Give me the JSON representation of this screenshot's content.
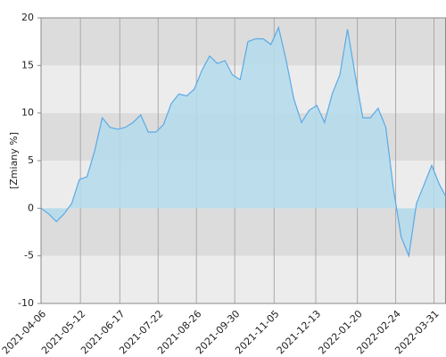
{
  "chart_data": {
    "type": "area",
    "y_label": "[Zmiany %]",
    "x": [
      "2021-04-06",
      "2021-04-13",
      "2021-04-20",
      "2021-04-27",
      "2021-05-04",
      "2021-05-11",
      "2021-05-18",
      "2021-05-25",
      "2021-06-01",
      "2021-06-08",
      "2021-06-15",
      "2021-06-22",
      "2021-06-29",
      "2021-07-06",
      "2021-07-13",
      "2021-07-20",
      "2021-07-27",
      "2021-08-03",
      "2021-08-10",
      "2021-08-17",
      "2021-08-24",
      "2021-08-31",
      "2021-09-07",
      "2021-09-14",
      "2021-09-21",
      "2021-09-28",
      "2021-10-05",
      "2021-10-12",
      "2021-10-19",
      "2021-10-26",
      "2021-11-02",
      "2021-11-09",
      "2021-11-16",
      "2021-11-23",
      "2021-11-30",
      "2021-12-07",
      "2021-12-14",
      "2021-12-21",
      "2021-12-28",
      "2022-01-04",
      "2022-01-11",
      "2022-01-18",
      "2022-01-25",
      "2022-02-01",
      "2022-02-08",
      "2022-02-15",
      "2022-02-22",
      "2022-03-01",
      "2022-03-08",
      "2022-03-15",
      "2022-03-22",
      "2022-03-29",
      "2022-04-05",
      "2022-04-11"
    ],
    "values": [
      0,
      -0.6,
      -1.4,
      -0.6,
      0.5,
      3,
      3.3,
      6,
      9.5,
      8.5,
      8.3,
      8.5,
      9,
      9.8,
      8,
      8,
      8.8,
      11,
      12,
      11.8,
      12.5,
      14.5,
      16,
      15.2,
      15.5,
      14,
      13.5,
      17.5,
      17.8,
      17.8,
      17.2,
      19,
      15.5,
      11.5,
      9,
      10.3,
      10.8,
      9,
      12,
      14,
      18.8,
      14,
      9.5,
      9.5,
      10.5,
      8.5,
      2,
      -3,
      -5,
      0.5,
      2.5,
      4.5,
      2.5,
      1.2
    ],
    "line_color": "#5aa9e6",
    "fill_color": "#b4dcec",
    "xlim": [
      "2021-04-06",
      "2022-04-11"
    ],
    "xticks": [
      "2021-04-06",
      "2021-05-12",
      "2021-06-17",
      "2021-07-22",
      "2021-08-26",
      "2021-09-30",
      "2021-11-05",
      "2021-12-13",
      "2022-01-20",
      "2022-02-24",
      "2022-03-31"
    ],
    "ylim": [
      -10,
      20
    ],
    "yticks": [
      -10,
      -5,
      0,
      5,
      10,
      15,
      20
    ],
    "band_colors": [
      "#ececec",
      "#dcdcdc"
    ],
    "grid": true
  }
}
